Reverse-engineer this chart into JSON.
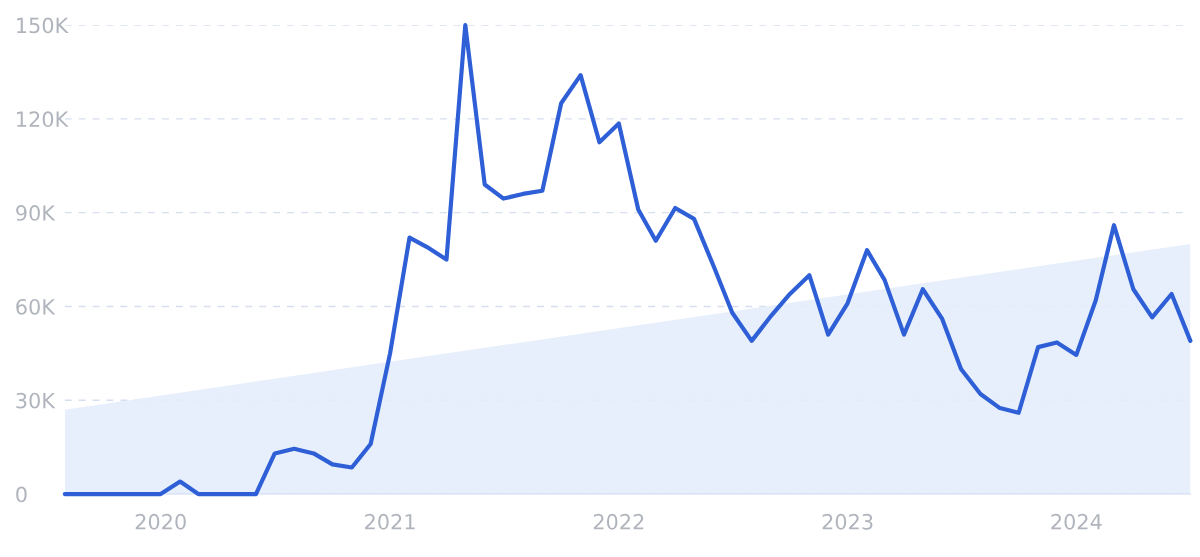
{
  "chart_data": {
    "type": "line",
    "x": [
      "2019-08",
      "2019-09",
      "2019-10",
      "2019-11",
      "2019-12",
      "2020-01",
      "2020-02",
      "2020-03",
      "2020-04",
      "2020-05",
      "2020-06",
      "2020-07",
      "2020-08",
      "2020-09",
      "2020-10",
      "2020-11",
      "2020-12",
      "2021-01",
      "2021-02",
      "2021-03",
      "2021-04",
      "2021-05",
      "2021-06",
      "2021-07",
      "2021-08",
      "2021-09",
      "2021-10",
      "2021-11",
      "2021-12",
      "2022-01",
      "2022-02",
      "2022-03",
      "2022-04",
      "2022-05",
      "2022-06",
      "2022-07",
      "2022-08",
      "2022-09",
      "2022-10",
      "2022-11",
      "2022-12",
      "2023-01",
      "2023-02",
      "2023-03",
      "2023-04",
      "2023-05",
      "2023-06",
      "2023-07",
      "2023-08",
      "2023-09",
      "2023-10",
      "2023-11",
      "2023-12",
      "2024-01",
      "2024-02",
      "2024-03",
      "2024-04",
      "2024-05",
      "2024-06",
      "2024-07"
    ],
    "series": [
      {
        "type": "area",
        "color": "#e3edfb",
        "x": [
          "2019-08",
          "2024-07"
        ],
        "values": [
          27000,
          80000
        ]
      },
      {
        "color": "#2f5fd6",
        "values": [
          0,
          0,
          0,
          0,
          0,
          0,
          4000,
          0,
          0,
          0,
          0,
          13000,
          14500,
          13000,
          9500,
          8500,
          16000,
          45000,
          82000,
          79000,
          75000,
          150000,
          99000,
          94500,
          96000,
          97000,
          125000,
          134000,
          112500,
          118500,
          91000,
          81000,
          91500,
          88000,
          73000,
          58000,
          49000,
          57000,
          64000,
          70000,
          51000,
          61000,
          78000,
          68500,
          51000,
          65500,
          56000,
          40000,
          32000,
          27500,
          26000,
          47000,
          48500,
          44500,
          62000,
          86000,
          65500,
          56500,
          64000,
          49000
        ]
      }
    ],
    "xlim": [
      "2019-08",
      "2024-07"
    ],
    "xticks": [
      {
        "value": "2020-01",
        "label": "2020"
      },
      {
        "value": "2021-01",
        "label": "2021"
      },
      {
        "value": "2022-01",
        "label": "2022"
      },
      {
        "value": "2023-01",
        "label": "2023"
      },
      {
        "value": "2024-01",
        "label": "2024"
      }
    ],
    "ylim": [
      0,
      150000
    ],
    "yticks": [
      0,
      {
        "value": 30000,
        "label": "30K"
      },
      {
        "value": 60000,
        "label": "60K"
      },
      {
        "value": 90000,
        "label": "90K"
      },
      {
        "value": 120000,
        "label": "120K"
      },
      {
        "value": 150000,
        "label": "150K"
      }
    ],
    "grid": "y",
    "marker": "none",
    "line_style": "solid",
    "legend": false
  }
}
